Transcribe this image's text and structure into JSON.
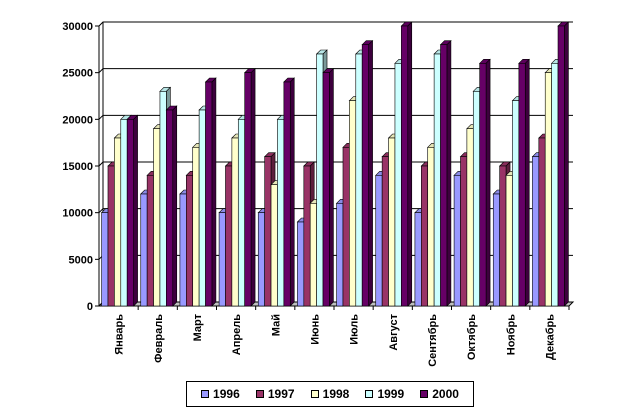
{
  "chart_data": {
    "type": "bar",
    "categories": [
      "Январь",
      "Февраль",
      "Март",
      "Апрель",
      "Май",
      "Июнь",
      "Июль",
      "Август",
      "Сентябрь",
      "Октябрь",
      "Ноябрь",
      "Декабрь"
    ],
    "series": [
      {
        "name": "1996",
        "color": "#9999FF",
        "values": [
          10000,
          12000,
          12000,
          10000,
          10000,
          9000,
          11000,
          14000,
          10000,
          14000,
          12000,
          16000
        ]
      },
      {
        "name": "1997",
        "color": "#993366",
        "values": [
          15000,
          14000,
          14000,
          15000,
          16000,
          15000,
          17000,
          16000,
          15000,
          16000,
          15000,
          18000
        ]
      },
      {
        "name": "1998",
        "color": "#FFFFCC",
        "values": [
          18000,
          19000,
          17000,
          18000,
          13000,
          11000,
          22000,
          18000,
          17000,
          19000,
          14000,
          25000
        ]
      },
      {
        "name": "1999",
        "color": "#CCFFFF",
        "values": [
          20000,
          23000,
          21000,
          20000,
          20000,
          27000,
          27000,
          26000,
          27000,
          23000,
          22000,
          26000
        ]
      },
      {
        "name": "2000",
        "color": "#660066",
        "values": [
          20000,
          21000,
          24000,
          25000,
          24000,
          25000,
          28000,
          30000,
          28000,
          26000,
          26000,
          30000
        ]
      }
    ],
    "y_ticks": [
      "0",
      "5000",
      "10000",
      "15000",
      "20000",
      "25000",
      "30000"
    ],
    "ylim": [
      0,
      30000
    ],
    "grid": true,
    "legend_position": "bottom"
  }
}
